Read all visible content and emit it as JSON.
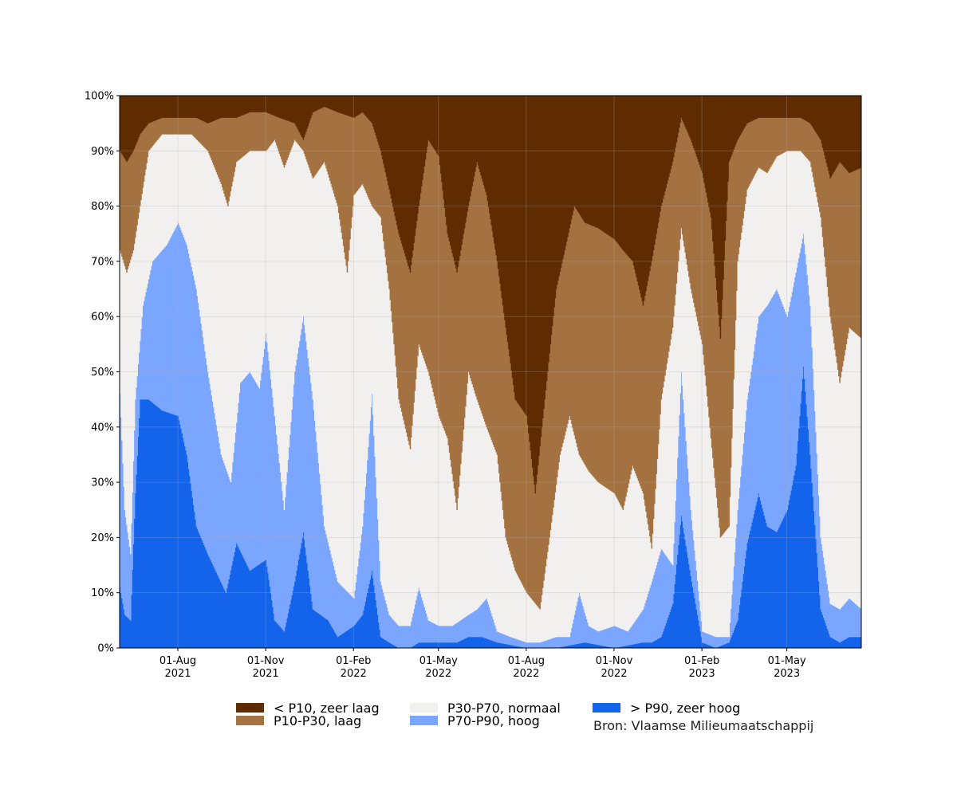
{
  "chart_data": {
    "type": "area",
    "stacked": true,
    "y_unit": "%",
    "ylim": [
      0,
      100
    ],
    "yticks": [
      "0%",
      "10%",
      "20%",
      "30%",
      "40%",
      "50%",
      "60%",
      "70%",
      "80%",
      "90%",
      "100%"
    ],
    "xlim": [
      "2021-06-01",
      "2023-07-18"
    ],
    "xticks": [
      {
        "date": "2021-08-01",
        "label1": "01-Aug",
        "label2": "2021"
      },
      {
        "date": "2021-11-01",
        "label1": "01-Nov",
        "label2": "2021"
      },
      {
        "date": "2022-02-01",
        "label1": "01-Feb",
        "label2": "2022"
      },
      {
        "date": "2022-05-01",
        "label1": "01-May",
        "label2": "2022"
      },
      {
        "date": "2022-08-01",
        "label1": "01-Aug",
        "label2": "2022"
      },
      {
        "date": "2022-11-01",
        "label1": "01-Nov",
        "label2": "2022"
      },
      {
        "date": "2023-02-01",
        "label1": "01-Feb",
        "label2": "2023"
      },
      {
        "date": "2023-05-01",
        "label1": "01-May",
        "label2": "2023"
      }
    ],
    "grid": true,
    "legend_position": "bottom-center",
    "series": [
      {
        "name": "< P10, zeer laag",
        "color": "#5e2c00"
      },
      {
        "name": "P10-P30, laag",
        "color": "#a47240"
      },
      {
        "name": "P30-P70, normaal",
        "color": "#f2f0ef"
      },
      {
        "name": "P70-P90, hoog",
        "color": "#7aa6ff"
      },
      {
        "name": "> P90, zeer hoog",
        "color": "#1363eb"
      }
    ],
    "cumulative_boundaries": {
      "description_keys": [
        "gt_p90",
        "gt_p70",
        "gt_p30",
        "gt_p10"
      ],
      "gt_p90": [
        [
          "2021-06-01",
          11
        ],
        [
          "2021-06-06",
          6
        ],
        [
          "2021-06-12",
          5
        ],
        [
          "2021-06-17",
          28
        ],
        [
          "2021-06-22",
          45
        ],
        [
          "2021-07-01",
          45
        ],
        [
          "2021-07-15",
          43
        ],
        [
          "2021-08-01",
          42
        ],
        [
          "2021-08-10",
          35
        ],
        [
          "2021-08-20",
          22
        ],
        [
          "2021-09-01",
          17
        ],
        [
          "2021-09-20",
          10
        ],
        [
          "2021-10-01",
          19
        ],
        [
          "2021-10-15",
          14
        ],
        [
          "2021-11-01",
          16
        ],
        [
          "2021-11-10",
          5
        ],
        [
          "2021-11-20",
          3
        ],
        [
          "2021-12-01",
          12
        ],
        [
          "2021-12-10",
          21
        ],
        [
          "2021-12-20",
          7
        ],
        [
          "2022-01-05",
          5
        ],
        [
          "2022-01-15",
          2
        ],
        [
          "2022-02-01",
          4
        ],
        [
          "2022-02-10",
          6
        ],
        [
          "2022-02-20",
          14
        ],
        [
          "2022-03-01",
          2
        ],
        [
          "2022-03-10",
          1
        ],
        [
          "2022-03-20",
          0
        ],
        [
          "2022-04-01",
          0
        ],
        [
          "2022-04-10",
          1
        ],
        [
          "2022-05-01",
          1
        ],
        [
          "2022-05-20",
          1
        ],
        [
          "2022-06-01",
          2
        ],
        [
          "2022-06-15",
          2
        ],
        [
          "2022-07-01",
          1
        ],
        [
          "2022-08-01",
          0
        ],
        [
          "2022-09-01",
          0
        ],
        [
          "2022-10-01",
          1
        ],
        [
          "2022-11-01",
          0
        ],
        [
          "2022-12-01",
          1
        ],
        [
          "2022-12-10",
          1
        ],
        [
          "2022-12-20",
          2
        ],
        [
          "2023-01-01",
          8
        ],
        [
          "2023-01-10",
          24
        ],
        [
          "2023-01-20",
          13
        ],
        [
          "2023-02-01",
          1
        ],
        [
          "2023-02-15",
          0
        ],
        [
          "2023-03-01",
          1
        ],
        [
          "2023-03-10",
          5
        ],
        [
          "2023-03-20",
          19
        ],
        [
          "2023-04-01",
          28
        ],
        [
          "2023-04-10",
          22
        ],
        [
          "2023-04-20",
          21
        ],
        [
          "2023-05-01",
          25
        ],
        [
          "2023-05-10",
          33
        ],
        [
          "2023-05-18",
          51
        ],
        [
          "2023-05-25",
          35
        ],
        [
          "2023-06-05",
          7
        ],
        [
          "2023-06-15",
          2
        ],
        [
          "2023-06-25",
          1
        ],
        [
          "2023-07-05",
          2
        ],
        [
          "2023-07-18",
          2
        ]
      ],
      "gt_p70": [
        [
          "2021-06-01",
          46
        ],
        [
          "2021-06-06",
          25
        ],
        [
          "2021-06-12",
          17
        ],
        [
          "2021-06-17",
          45
        ],
        [
          "2021-06-25",
          62
        ],
        [
          "2021-07-05",
          70
        ],
        [
          "2021-07-20",
          73
        ],
        [
          "2021-08-01",
          77
        ],
        [
          "2021-08-10",
          73
        ],
        [
          "2021-08-20",
          65
        ],
        [
          "2021-09-01",
          50
        ],
        [
          "2021-09-15",
          35
        ],
        [
          "2021-09-25",
          30
        ],
        [
          "2021-10-05",
          48
        ],
        [
          "2021-10-15",
          50
        ],
        [
          "2021-10-25",
          47
        ],
        [
          "2021-11-01",
          57
        ],
        [
          "2021-11-10",
          42
        ],
        [
          "2021-11-20",
          25
        ],
        [
          "2021-12-01",
          50
        ],
        [
          "2021-12-10",
          60
        ],
        [
          "2021-12-20",
          45
        ],
        [
          "2022-01-01",
          22
        ],
        [
          "2022-01-15",
          12
        ],
        [
          "2022-02-01",
          9
        ],
        [
          "2022-02-10",
          22
        ],
        [
          "2022-02-20",
          46
        ],
        [
          "2022-03-01",
          12
        ],
        [
          "2022-03-10",
          6
        ],
        [
          "2022-03-20",
          4
        ],
        [
          "2022-04-01",
          4
        ],
        [
          "2022-04-10",
          11
        ],
        [
          "2022-04-20",
          5
        ],
        [
          "2022-05-01",
          4
        ],
        [
          "2022-05-15",
          4
        ],
        [
          "2022-06-01",
          6
        ],
        [
          "2022-06-10",
          7
        ],
        [
          "2022-06-20",
          9
        ],
        [
          "2022-07-01",
          3
        ],
        [
          "2022-07-15",
          2
        ],
        [
          "2022-08-01",
          1
        ],
        [
          "2022-08-15",
          1
        ],
        [
          "2022-09-01",
          2
        ],
        [
          "2022-09-15",
          2
        ],
        [
          "2022-09-25",
          10
        ],
        [
          "2022-10-05",
          4
        ],
        [
          "2022-10-15",
          3
        ],
        [
          "2022-11-01",
          4
        ],
        [
          "2022-11-15",
          3
        ],
        [
          "2022-12-01",
          7
        ],
        [
          "2022-12-10",
          12
        ],
        [
          "2022-12-20",
          18
        ],
        [
          "2023-01-01",
          15
        ],
        [
          "2023-01-10",
          50
        ],
        [
          "2023-01-20",
          25
        ],
        [
          "2023-02-01",
          3
        ],
        [
          "2023-02-15",
          2
        ],
        [
          "2023-03-01",
          2
        ],
        [
          "2023-03-10",
          25
        ],
        [
          "2023-03-20",
          45
        ],
        [
          "2023-04-01",
          60
        ],
        [
          "2023-04-10",
          62
        ],
        [
          "2023-04-20",
          65
        ],
        [
          "2023-05-01",
          60
        ],
        [
          "2023-05-10",
          68
        ],
        [
          "2023-05-18",
          75
        ],
        [
          "2023-05-25",
          62
        ],
        [
          "2023-06-05",
          20
        ],
        [
          "2023-06-15",
          8
        ],
        [
          "2023-06-25",
          7
        ],
        [
          "2023-07-05",
          9
        ],
        [
          "2023-07-18",
          7
        ]
      ],
      "gt_p30": [
        [
          "2021-06-01",
          72
        ],
        [
          "2021-06-08",
          68
        ],
        [
          "2021-06-15",
          72
        ],
        [
          "2021-06-22",
          80
        ],
        [
          "2021-07-01",
          90
        ],
        [
          "2021-07-15",
          93
        ],
        [
          "2021-08-01",
          93
        ],
        [
          "2021-08-15",
          93
        ],
        [
          "2021-09-01",
          90
        ],
        [
          "2021-09-15",
          84
        ],
        [
          "2021-09-22",
          80
        ],
        [
          "2021-10-01",
          88
        ],
        [
          "2021-10-15",
          90
        ],
        [
          "2021-11-01",
          90
        ],
        [
          "2021-11-10",
          92
        ],
        [
          "2021-11-20",
          87
        ],
        [
          "2021-12-01",
          92
        ],
        [
          "2021-12-10",
          90
        ],
        [
          "2021-12-20",
          85
        ],
        [
          "2022-01-01",
          88
        ],
        [
          "2022-01-15",
          80
        ],
        [
          "2022-01-25",
          68
        ],
        [
          "2022-02-01",
          82
        ],
        [
          "2022-02-10",
          84
        ],
        [
          "2022-02-20",
          80
        ],
        [
          "2022-03-01",
          78
        ],
        [
          "2022-03-10",
          65
        ],
        [
          "2022-03-20",
          45
        ],
        [
          "2022-04-01",
          36
        ],
        [
          "2022-04-10",
          55
        ],
        [
          "2022-04-20",
          50
        ],
        [
          "2022-05-01",
          42
        ],
        [
          "2022-05-10",
          38
        ],
        [
          "2022-05-20",
          25
        ],
        [
          "2022-06-01",
          50
        ],
        [
          "2022-06-10",
          45
        ],
        [
          "2022-06-20",
          40
        ],
        [
          "2022-07-01",
          35
        ],
        [
          "2022-07-10",
          20
        ],
        [
          "2022-07-20",
          14
        ],
        [
          "2022-08-01",
          10
        ],
        [
          "2022-08-15",
          7
        ],
        [
          "2022-08-25",
          20
        ],
        [
          "2022-09-05",
          35
        ],
        [
          "2022-09-15",
          42
        ],
        [
          "2022-09-25",
          35
        ],
        [
          "2022-10-05",
          32
        ],
        [
          "2022-10-15",
          30
        ],
        [
          "2022-11-01",
          28
        ],
        [
          "2022-11-10",
          25
        ],
        [
          "2022-11-20",
          33
        ],
        [
          "2022-12-01",
          28
        ],
        [
          "2022-12-10",
          18
        ],
        [
          "2022-12-20",
          45
        ],
        [
          "2023-01-01",
          58
        ],
        [
          "2023-01-10",
          76
        ],
        [
          "2023-01-20",
          65
        ],
        [
          "2023-02-01",
          55
        ],
        [
          "2023-02-10",
          38
        ],
        [
          "2023-02-20",
          20
        ],
        [
          "2023-03-01",
          22
        ],
        [
          "2023-03-10",
          70
        ],
        [
          "2023-03-20",
          83
        ],
        [
          "2023-04-01",
          87
        ],
        [
          "2023-04-10",
          86
        ],
        [
          "2023-04-20",
          89
        ],
        [
          "2023-05-01",
          90
        ],
        [
          "2023-05-15",
          90
        ],
        [
          "2023-05-25",
          88
        ],
        [
          "2023-06-05",
          78
        ],
        [
          "2023-06-15",
          60
        ],
        [
          "2023-06-25",
          48
        ],
        [
          "2023-07-05",
          58
        ],
        [
          "2023-07-18",
          56
        ]
      ],
      "gt_p10": [
        [
          "2021-06-01",
          90
        ],
        [
          "2021-06-08",
          88
        ],
        [
          "2021-06-15",
          90
        ],
        [
          "2021-06-22",
          93
        ],
        [
          "2021-07-01",
          95
        ],
        [
          "2021-07-15",
          96
        ],
        [
          "2021-08-01",
          96
        ],
        [
          "2021-08-20",
          96
        ],
        [
          "2021-09-01",
          95
        ],
        [
          "2021-09-15",
          96
        ],
        [
          "2021-10-01",
          96
        ],
        [
          "2021-10-15",
          97
        ],
        [
          "2021-11-01",
          97
        ],
        [
          "2021-11-15",
          96
        ],
        [
          "2021-12-01",
          95
        ],
        [
          "2021-12-10",
          92
        ],
        [
          "2021-12-20",
          97
        ],
        [
          "2022-01-01",
          98
        ],
        [
          "2022-01-15",
          97
        ],
        [
          "2022-02-01",
          96
        ],
        [
          "2022-02-10",
          97
        ],
        [
          "2022-02-20",
          95
        ],
        [
          "2022-03-01",
          90
        ],
        [
          "2022-03-10",
          83
        ],
        [
          "2022-03-20",
          75
        ],
        [
          "2022-04-01",
          68
        ],
        [
          "2022-04-10",
          80
        ],
        [
          "2022-04-20",
          92
        ],
        [
          "2022-05-01",
          89
        ],
        [
          "2022-05-10",
          75
        ],
        [
          "2022-05-20",
          68
        ],
        [
          "2022-06-01",
          80
        ],
        [
          "2022-06-10",
          88
        ],
        [
          "2022-06-20",
          82
        ],
        [
          "2022-07-01",
          70
        ],
        [
          "2022-07-10",
          58
        ],
        [
          "2022-07-20",
          45
        ],
        [
          "2022-08-01",
          42
        ],
        [
          "2022-08-10",
          28
        ],
        [
          "2022-08-20",
          45
        ],
        [
          "2022-09-01",
          65
        ],
        [
          "2022-09-10",
          72
        ],
        [
          "2022-09-20",
          80
        ],
        [
          "2022-10-01",
          77
        ],
        [
          "2022-10-15",
          76
        ],
        [
          "2022-11-01",
          74
        ],
        [
          "2022-11-10",
          72
        ],
        [
          "2022-11-20",
          70
        ],
        [
          "2022-12-01",
          62
        ],
        [
          "2022-12-10",
          70
        ],
        [
          "2022-12-20",
          80
        ],
        [
          "2023-01-01",
          88
        ],
        [
          "2023-01-10",
          96
        ],
        [
          "2023-01-20",
          92
        ],
        [
          "2023-02-01",
          86
        ],
        [
          "2023-02-10",
          78
        ],
        [
          "2023-02-20",
          56
        ],
        [
          "2023-03-01",
          88
        ],
        [
          "2023-03-10",
          92
        ],
        [
          "2023-03-20",
          95
        ],
        [
          "2023-04-01",
          96
        ],
        [
          "2023-04-15",
          96
        ],
        [
          "2023-05-01",
          96
        ],
        [
          "2023-05-15",
          96
        ],
        [
          "2023-05-25",
          95
        ],
        [
          "2023-06-05",
          92
        ],
        [
          "2023-06-15",
          85
        ],
        [
          "2023-06-25",
          88
        ],
        [
          "2023-07-05",
          86
        ],
        [
          "2023-07-18",
          87
        ]
      ]
    }
  },
  "legend": {
    "items": [
      {
        "label": "< P10, zeer laag",
        "color": "#5e2c00"
      },
      {
        "label": "P10-P30, laag",
        "color": "#a47240"
      },
      {
        "label": "P30-P70, normaal",
        "color": "#f2f0ef"
      },
      {
        "label": "P70-P90, hoog",
        "color": "#7aa6ff"
      },
      {
        "label": "> P90, zeer hoog",
        "color": "#1363eb"
      }
    ],
    "source": "Bron: Vlaamse Milieumaatschappij"
  }
}
